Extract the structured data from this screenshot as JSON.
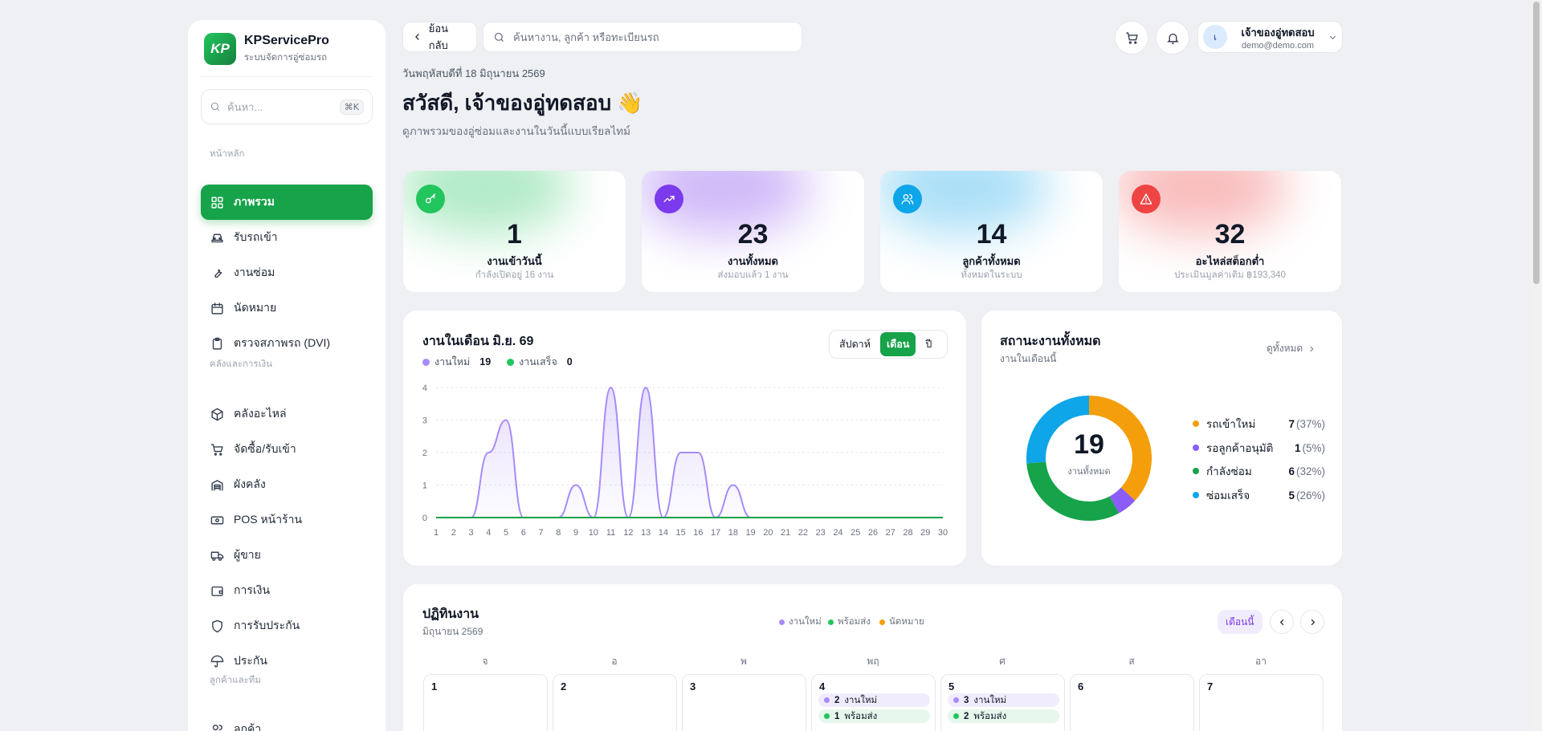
{
  "brand": {
    "logo": "KP",
    "name": "KPServicePro",
    "subtitle": "ระบบจัดการอู่ซ่อมรถ"
  },
  "sidebar": {
    "search_placeholder": "ค้นหา...",
    "search_shortcut": "⌘K",
    "sections": [
      {
        "label": "หน้าหลัก"
      },
      {
        "label": "คลังและการเงิน"
      },
      {
        "label": "ลูกค้าและทีม"
      }
    ],
    "items": [
      {
        "label": "ภาพรวม",
        "icon": "grid-icon"
      },
      {
        "label": "รับรถเข้า",
        "icon": "car-icon"
      },
      {
        "label": "งานซ่อม",
        "icon": "wrench-icon"
      },
      {
        "label": "นัดหมาย",
        "icon": "calendar-icon"
      },
      {
        "label": "ตรวจสภาพรถ (DVI)",
        "icon": "clipboard-icon"
      },
      {
        "label": "คลังอะไหล่",
        "icon": "box-icon"
      },
      {
        "label": "จัดซื้อ/รับเข้า",
        "icon": "cart-icon"
      },
      {
        "label": "ผังคลัง",
        "icon": "warehouse-icon"
      },
      {
        "label": "POS หน้าร้าน",
        "icon": "pos-icon"
      },
      {
        "label": "ผู้ขาย",
        "icon": "truck-icon"
      },
      {
        "label": "การเงิน",
        "icon": "wallet-icon"
      },
      {
        "label": "การรับประกัน",
        "icon": "shield-icon"
      },
      {
        "label": "ประกัน",
        "icon": "umbrella-icon"
      },
      {
        "label": "ลูกค้า",
        "icon": "users-icon"
      }
    ]
  },
  "topbar": {
    "back_label": "ย้อนกลับ",
    "search_placeholder": "ค้นหางาน, ลูกค้า หรือทะเบียนรถ",
    "user": {
      "initial": "เ",
      "name": "เจ้าของอู่ทดสอบ",
      "email": "demo@demo.com"
    }
  },
  "header": {
    "date": "วันพฤหัสบดีที่ 18 มิถุนายน 2569",
    "greeting": "สวัสดี, เจ้าของอู่ทดสอบ 👋",
    "subtitle": "ดูภาพรวมของอู่ซ่อมและงานในวันนี้แบบเรียลไทม์"
  },
  "kpis": [
    {
      "value": "1",
      "label": "งานเข้าวันนี้",
      "sub": "กำลังเปิดอยู่ 16 งาน",
      "color": "#22c55e",
      "icon": "key-icon"
    },
    {
      "value": "23",
      "label": "งานทั้งหมด",
      "sub": "ส่งมอบแล้ว 1 งาน",
      "color": "#7c3aed",
      "icon": "trend-up-icon"
    },
    {
      "value": "14",
      "label": "ลูกค้าทั้งหมด",
      "sub": "ทั้งหมดในระบบ",
      "color": "#0ea5e9",
      "icon": "users-icon"
    },
    {
      "value": "32",
      "label": "อะไหล่สต็อกต่ำ",
      "sub": "ประเมินมูลค่าเติม ฿193,340",
      "color": "#ef4444",
      "icon": "alert-icon"
    }
  ],
  "monthly": {
    "title": "งานในเดือน มิ.ย. 69",
    "segments": [
      "สัปดาห์",
      "เดือน",
      "ปี"
    ],
    "active_segment": "เดือน",
    "legend": [
      {
        "name": "งานใหม่",
        "count": "19",
        "color": "#a78bfa"
      },
      {
        "name": "งานเสร็จ",
        "count": "0",
        "color": "#22c55e"
      }
    ]
  },
  "chart_data": {
    "type": "area",
    "x": [
      1,
      2,
      3,
      4,
      5,
      6,
      7,
      8,
      9,
      10,
      11,
      12,
      13,
      14,
      15,
      16,
      17,
      18,
      19,
      20,
      21,
      22,
      23,
      24,
      25,
      26,
      27,
      28,
      29,
      30
    ],
    "x_tick_labels": [
      "1",
      "2",
      "3",
      "4",
      "5",
      "6",
      "7",
      "8",
      "9",
      "10",
      "11",
      "12",
      "13",
      "14",
      "15",
      "16",
      "17",
      "18",
      "19",
      "20",
      "21",
      "22",
      "23",
      "24",
      "25",
      "26",
      "27",
      "28",
      "29",
      "30"
    ],
    "y_tick_labels": [
      "0",
      "1",
      "2",
      "3",
      "4"
    ],
    "ylim": [
      0,
      4
    ],
    "grid": true,
    "series": [
      {
        "name": "งานใหม่",
        "color": "#a78bfa",
        "values": [
          0,
          0,
          0,
          2,
          3,
          0,
          0,
          0,
          1,
          0,
          4,
          0,
          4,
          0,
          2,
          2,
          0,
          1,
          0,
          0,
          0,
          0,
          0,
          0,
          0,
          0,
          0,
          0,
          0,
          0
        ]
      },
      {
        "name": "งานเสร็จ",
        "color": "#16a34a",
        "values": [
          0,
          0,
          0,
          0,
          0,
          0,
          0,
          0,
          0,
          0,
          0,
          0,
          0,
          0,
          0,
          0,
          0,
          0,
          0,
          0,
          0,
          0,
          0,
          0,
          0,
          0,
          0,
          0,
          0,
          0
        ]
      }
    ]
  },
  "status": {
    "title": "สถานะงานทั้งหมด",
    "subtitle": "งานในเดือนนี้",
    "view_all": "ดูทั้งหมด",
    "total": "19",
    "total_label": "งานทั้งหมด",
    "items": [
      {
        "label": "รถเข้าใหม่",
        "count": "7",
        "pct": "(37%)",
        "value": 7,
        "color": "#f59e0b"
      },
      {
        "label": "รอลูกค้าอนุมัติ",
        "count": "1",
        "pct": "(5%)",
        "value": 1,
        "color": "#8b5cf6"
      },
      {
        "label": "กำลังซ่อม",
        "count": "6",
        "pct": "(32%)",
        "value": 6,
        "color": "#16a34a"
      },
      {
        "label": "ซ่อมเสร็จ",
        "count": "5",
        "pct": "(26%)",
        "value": 5,
        "color": "#0ea5e9"
      }
    ]
  },
  "calendar": {
    "title": "ปฏิทินงาน",
    "subtitle": "มิถุนายน 2569",
    "legend": [
      {
        "name": "งานใหม่",
        "color": "#a78bfa"
      },
      {
        "name": "พร้อมส่ง",
        "color": "#22c55e"
      },
      {
        "name": "นัดหมาย",
        "color": "#f59e0b"
      }
    ],
    "this_month": "เดือนนี้",
    "weekdays": [
      "จ",
      "อ",
      "พ",
      "พฤ",
      "ศ",
      "ส",
      "อา"
    ],
    "days": [
      {
        "num": "1",
        "chips": []
      },
      {
        "num": "2",
        "chips": []
      },
      {
        "num": "3",
        "chips": []
      },
      {
        "num": "4",
        "chips": [
          {
            "count": "2",
            "label": "งานใหม่",
            "color": "#a78bfa",
            "bg": "#f1ecfd"
          },
          {
            "count": "1",
            "label": "พร้อมส่ง",
            "color": "#22c55e",
            "bg": "#e6f7ec"
          }
        ]
      },
      {
        "num": "5",
        "chips": [
          {
            "count": "3",
            "label": "งานใหม่",
            "color": "#a78bfa",
            "bg": "#f1ecfd"
          },
          {
            "count": "2",
            "label": "พร้อมส่ง",
            "color": "#22c55e",
            "bg": "#e6f7ec"
          }
        ]
      },
      {
        "num": "6",
        "chips": []
      },
      {
        "num": "7",
        "chips": []
      }
    ]
  }
}
